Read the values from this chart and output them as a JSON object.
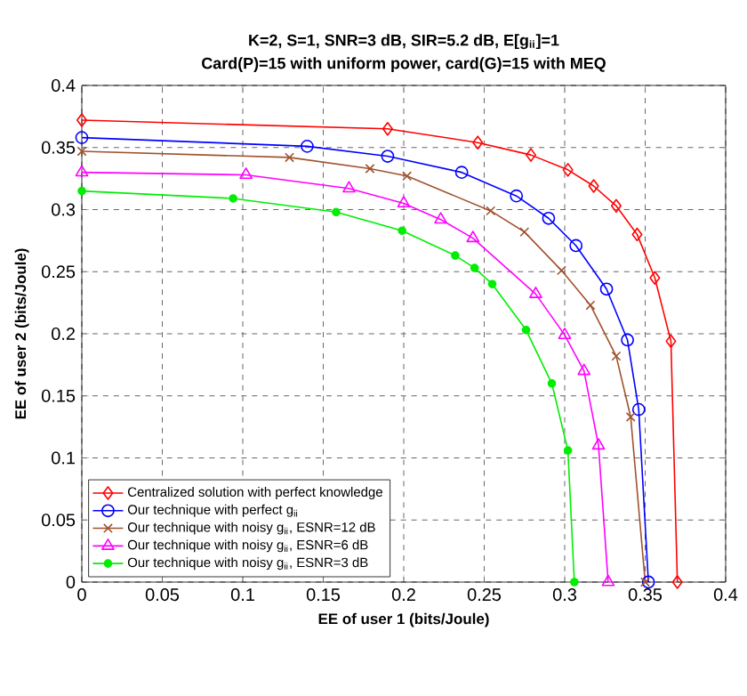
{
  "chart_data": {
    "type": "line",
    "title": "K=2, S=1, SNR=3 dB, SIR=5.2 dB, E[g$_{ii}$]=1",
    "subtitle": "Card(P)=15 with uniform power, card(G)=15 with MEQ",
    "xlabel": "EE of user 1 (bits/Joule)",
    "ylabel": "EE of user 2 (bits/Joule)",
    "xlim": [
      0,
      0.4
    ],
    "ylim": [
      0,
      0.4
    ],
    "xticks": [
      0,
      0.05,
      0.1,
      0.15,
      0.2,
      0.25,
      0.3,
      0.35,
      0.4
    ],
    "yticks": [
      0,
      0.05,
      0.1,
      0.15,
      0.2,
      0.25,
      0.3,
      0.35,
      0.4
    ],
    "grid": true,
    "legend": "bottom left",
    "line_style": "solid",
    "series": [
      {
        "name": "Centralized solution with perfect knowledge",
        "color": "#ff0000",
        "marker": "diamond",
        "x": [
          0,
          0.19,
          0.246,
          0.279,
          0.302,
          0.318,
          0.332,
          0.345,
          0.356,
          0.366,
          0.37
        ],
        "values": [
          0.372,
          0.365,
          0.354,
          0.344,
          0.332,
          0.319,
          0.303,
          0.28,
          0.245,
          0.194,
          0
        ]
      },
      {
        "name": "Our technique with perfect g$_{ii}$",
        "color": "#0000ff",
        "marker": "circle",
        "x": [
          0,
          0.14,
          0.19,
          0.236,
          0.27,
          0.29,
          0.307,
          0.326,
          0.339,
          0.346,
          0.352
        ],
        "values": [
          0.358,
          0.351,
          0.343,
          0.33,
          0.311,
          0.293,
          0.271,
          0.236,
          0.195,
          0.139,
          0
        ]
      },
      {
        "name": "Our technique with noisy g$_{ii}$, ESNR=12 dB",
        "color": "#a0522d",
        "marker": "cross",
        "x": [
          0,
          0.129,
          0.179,
          0.202,
          0.254,
          0.275,
          0.298,
          0.316,
          0.332,
          0.341,
          0.35
        ],
        "values": [
          0.347,
          0.342,
          0.333,
          0.327,
          0.299,
          0.282,
          0.251,
          0.223,
          0.182,
          0.133,
          0
        ]
      },
      {
        "name": "Our technique with noisy g$_{ii}$, ESNR=6 dB",
        "color": "#ff00ff",
        "marker": "triangle",
        "x": [
          0,
          0.102,
          0.166,
          0.2,
          0.223,
          0.243,
          0.282,
          0.3,
          0.312,
          0.321,
          0.327
        ],
        "values": [
          0.33,
          0.328,
          0.317,
          0.305,
          0.292,
          0.277,
          0.232,
          0.199,
          0.17,
          0.11,
          0
        ]
      },
      {
        "name": "Our technique with noisy g$_{ii}$, ESNR=3 dB",
        "color": "#00ee00",
        "marker": "dot",
        "x": [
          0,
          0.094,
          0.158,
          0.199,
          0.232,
          0.244,
          0.255,
          0.276,
          0.292,
          0.302,
          0.306
        ],
        "values": [
          0.315,
          0.309,
          0.298,
          0.283,
          0.263,
          0.253,
          0.24,
          0.203,
          0.16,
          0.106,
          0
        ]
      }
    ]
  }
}
